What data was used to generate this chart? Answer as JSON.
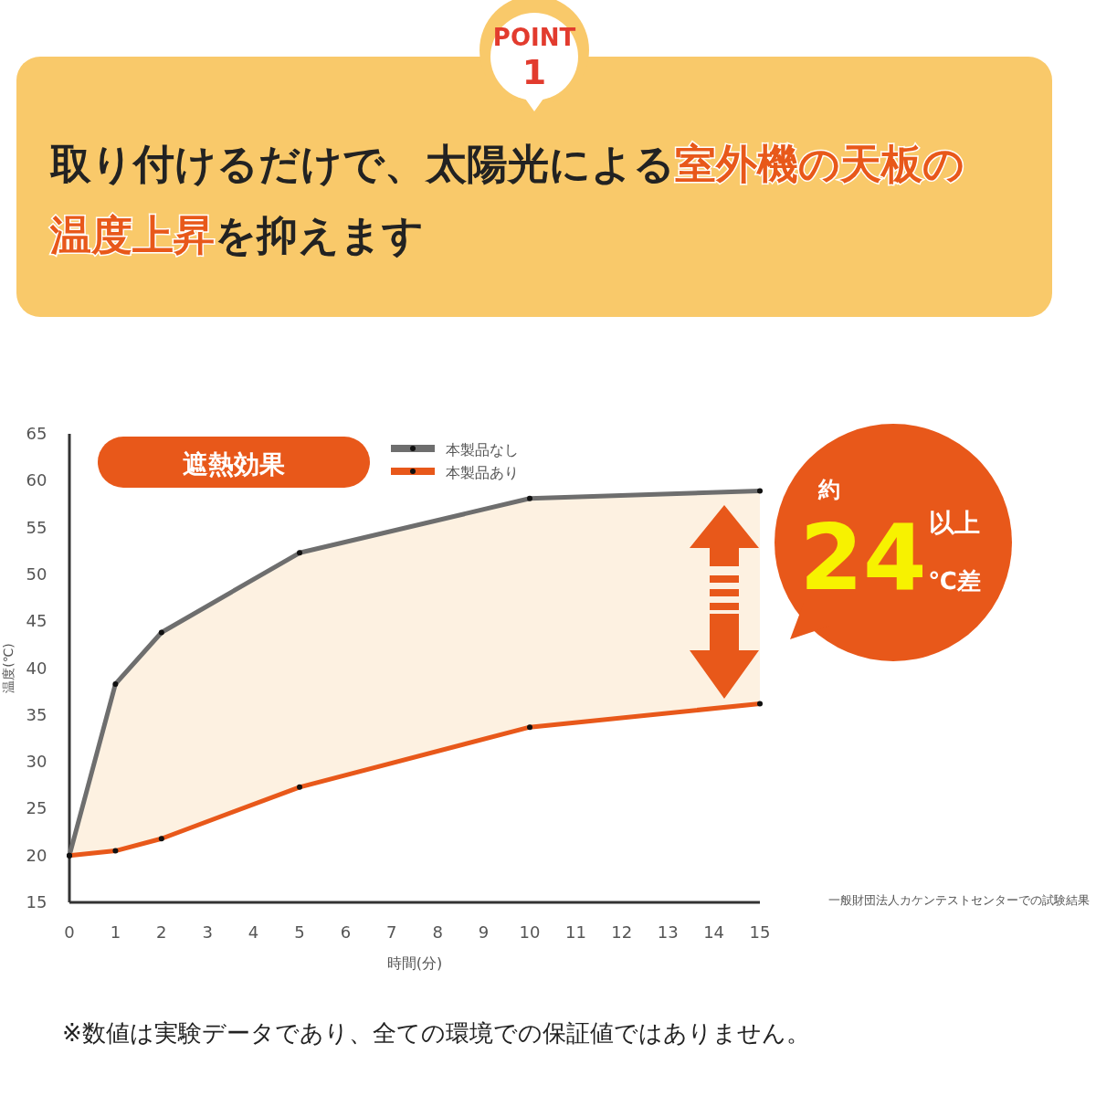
{
  "chart_data": {
    "type": "line",
    "title": "取り付けるだけで、太陽光による**室外機の天板の温度上昇**を抑えます",
    "xlabel": "時間(分)",
    "ylabel": "温度(℃)",
    "x": [
      0,
      1,
      2,
      5,
      10,
      15
    ],
    "series": [
      {
        "name": "本製品なし",
        "color": "#6e6e6e",
        "values": [
          20,
          38.3,
          43.8,
          52.3,
          58.1,
          58.9
        ]
      },
      {
        "name": "本製品あり",
        "color": "#e8581a",
        "values": [
          20,
          20.5,
          21.8,
          27.3,
          33.7,
          36.2
        ]
      }
    ],
    "xlim": [
      0,
      15
    ],
    "xticks": [
      0,
      1,
      2,
      3,
      4,
      5,
      6,
      7,
      8,
      9,
      10,
      11,
      12,
      13,
      14,
      15
    ],
    "ylim": [
      15,
      65
    ],
    "yticks": [
      15,
      20,
      25,
      30,
      35,
      40,
      45,
      50,
      55,
      60,
      65
    ],
    "grid": false,
    "legend": "top",
    "marker": "circle",
    "line_style": "solid",
    "annotations": [
      "POINT",
      "1",
      "遮熱効果",
      "約",
      "24",
      "以上",
      "℃差",
      "一般財団法人カケンテストセンターでの試験結果",
      "※数値は実験データであり、全ての環境での保証値ではありません。"
    ]
  }
}
